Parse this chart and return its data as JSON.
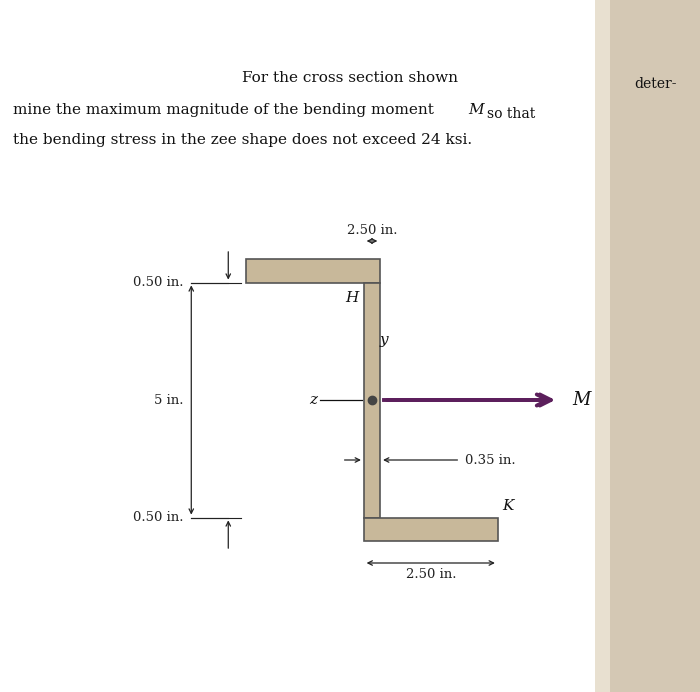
{
  "shape_fill": "#c8b89a",
  "shape_edge": "#555555",
  "shape_linewidth": 1.2,
  "arrow_color": "#5c1f5c",
  "dim_line_color": "#222222",
  "text_color": "#111111",
  "page_bg": "#f0ece4",
  "right_page_color": "#d8cfc0",
  "dim_top_width": "2.50 in.",
  "dim_bottom_width": "2.50 in.",
  "dim_web_thickness": "0.35 in.",
  "dim_height_label": "5 in.",
  "dim_top_flange": "0.50 in.",
  "dim_bot_flange": "0.50 in.",
  "label_H": "H",
  "label_K": "K",
  "label_y": "y",
  "label_z": "z",
  "label_M": "M",
  "fig_width": 7.0,
  "fig_height": 6.92,
  "dpi": 100
}
